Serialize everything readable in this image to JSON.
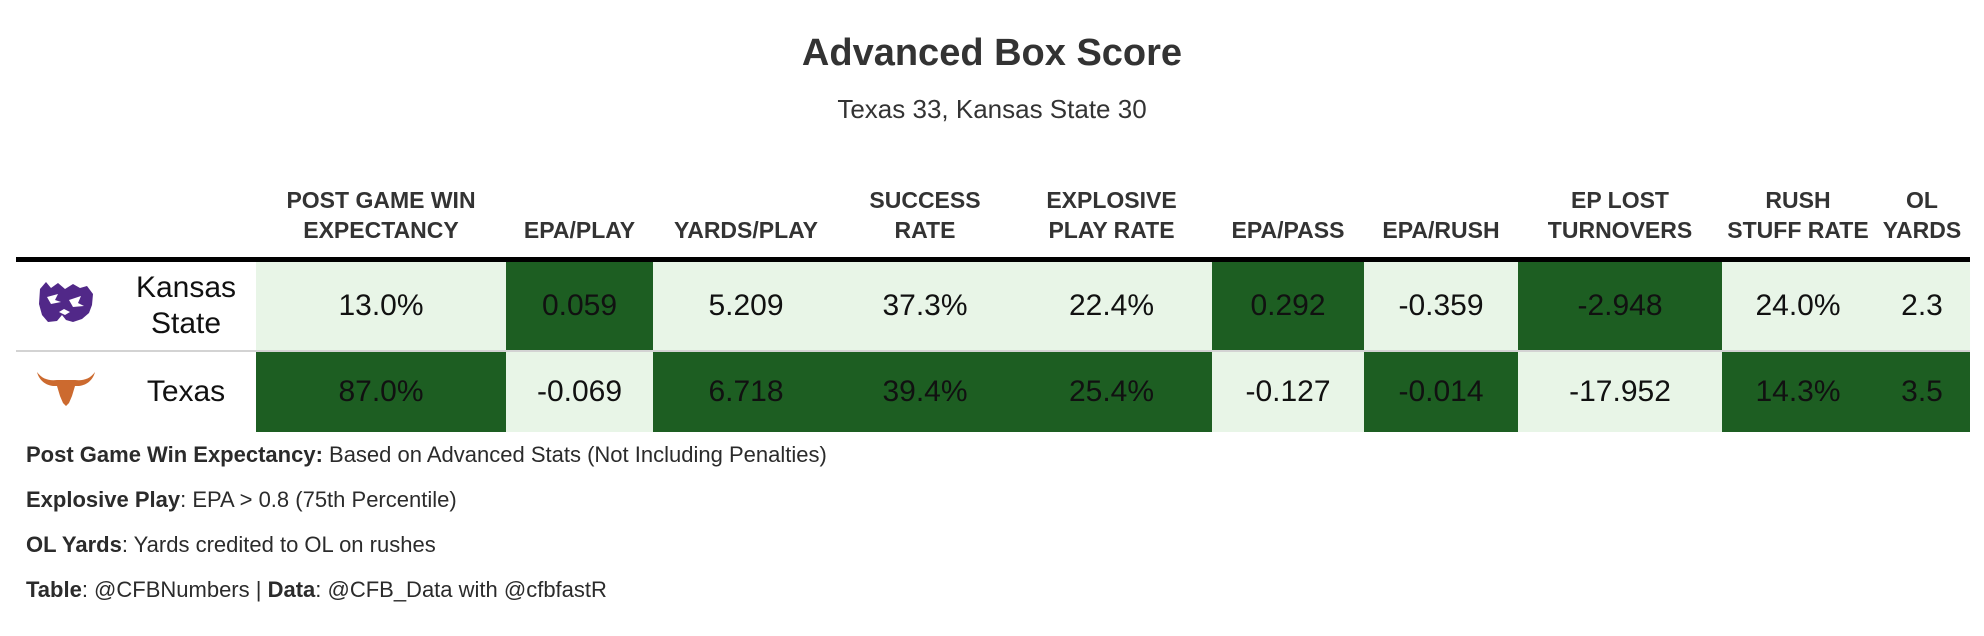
{
  "header": {
    "title": "Advanced Box Score",
    "subtitle": "Texas 33, Kansas State 30"
  },
  "table": {
    "columns": [
      "POST GAME WIN EXPECTANCY",
      "EPA/PLAY",
      "YARDS/PLAY",
      "SUCCESS RATE",
      "EXPLOSIVE PLAY RATE",
      "EPA/PASS",
      "EPA/RUSH",
      "EP LOST TURNOVERS",
      "RUSH STUFF RATE",
      "OL YARDS"
    ],
    "rows": [
      {
        "team": "Kansas State",
        "logo": "kansas-state-wildcat-icon",
        "logo_color": "#512888",
        "cells": [
          "13.0%",
          "0.059",
          "5.209",
          "37.3%",
          "22.4%",
          "0.292",
          "-0.359",
          "-2.948",
          "24.0%",
          "2.3"
        ],
        "shade": [
          "lo",
          "hi",
          "lo",
          "lo",
          "lo",
          "hi",
          "lo",
          "hi",
          "lo",
          "lo"
        ]
      },
      {
        "team": "Texas",
        "logo": "texas-longhorn-icon",
        "logo_color": "#cc6a2f",
        "cells": [
          "87.0%",
          "-0.069",
          "6.718",
          "39.4%",
          "25.4%",
          "-0.127",
          "-0.014",
          "-17.952",
          "14.3%",
          "3.5"
        ],
        "shade": [
          "hi",
          "lo",
          "hi",
          "hi",
          "hi",
          "lo",
          "hi",
          "lo",
          "hi",
          "hi"
        ]
      }
    ]
  },
  "colors": {
    "high_fill": "#1d5e22",
    "low_fill": "#e8f5e7"
  },
  "notes": {
    "win_exp_label": "Post Game Win Expectancy:",
    "win_exp_text": " Based on Advanced Stats (Not Including Penalties)",
    "explosive_label": "Explosive Play",
    "explosive_text": ": EPA > 0.8 (75th Percentile)",
    "ol_label": "OL Yards",
    "ol_text": ": Yards credited to OL on rushes",
    "table_label": "Table",
    "table_text": ": @CFBNumbers | ",
    "data_label": "Data",
    "data_text": ": @CFB_Data with @cfbfastR"
  }
}
